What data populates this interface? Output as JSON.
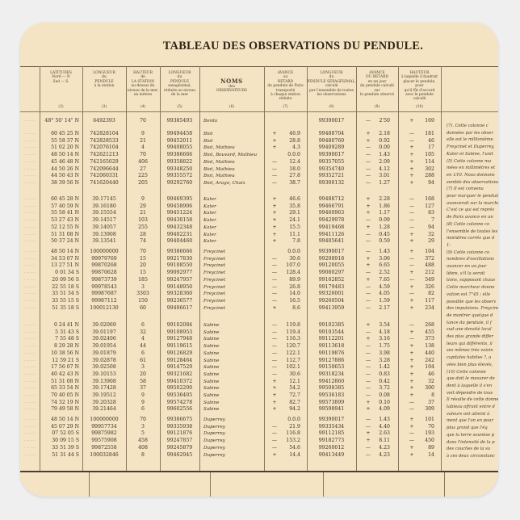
{
  "title": "TABLEAU DES OBSERVATIONS DU PENDULE.",
  "colors": {
    "paper": "#f4e4c4",
    "ink": "#3a2e22",
    "background": "#efefef"
  },
  "headers": [
    {
      "lines": [
        "LATITUDES",
        "Nord — N",
        "Sud — S."
      ],
      "num": "(2)"
    },
    {
      "lines": [
        "LONGUEUR",
        "du",
        "PENDULE",
        "à la station"
      ],
      "num": "(3)"
    },
    {
      "lines": [
        "HAUTEUR",
        "de",
        "LA STATION",
        "au-dessus du",
        "niveau de la mer,",
        "en mètres"
      ],
      "num": "(4)"
    },
    {
      "lines": [
        "LONGUEUR",
        "du",
        "PENDULE",
        "sexagésimal,",
        "réduite au niveau",
        "de la mer"
      ],
      "num": "(5)"
    },
    {
      "lines": [
        "NOMS",
        "des",
        "OBSERVATEURS"
      ],
      "num": "(6)"
    },
    {
      "lines": [
        "AVANCE",
        "ou",
        "RETARD",
        "du pendule de Paris",
        "transporté",
        "à chaque station",
        "réduite"
      ],
      "num": "(7)"
    },
    {
      "lines": [
        "LONGUEUR",
        "du",
        "PENDULE SEXAGÉSIMAL,",
        "calculé",
        "par l'ensemble de toutes",
        "les observations"
      ],
      "num": "(8)"
    },
    {
      "lines": [
        "AVANCE",
        "OU RETARD",
        "en un jour",
        "du pendule calculé",
        "sur",
        "le pendule observé"
      ],
      "num": "(9)"
    },
    {
      "lines": [
        "HAUTEUR",
        "à laquelle il faudrait",
        "placer le pendule,",
        "pour",
        "qu'il fût d'accord",
        "avec le pendule",
        "calculé"
      ],
      "num": "(10)"
    }
  ],
  "groups": [
    {
      "rows": [
        [
          "48° 50' 14\" N",
          "6492393",
          "70",
          "99385493",
          "Borda",
          "",
          "",
          "99390017",
          "—",
          "2'50",
          "+",
          "169"
        ]
      ]
    },
    {
      "rows": [
        [
          "60 45 25 N",
          "742828104",
          "9",
          "99494458",
          "Biot",
          "+",
          "46.9",
          "99488704",
          "+",
          "2.18",
          "—",
          "181"
        ],
        [
          "55 58 37 N",
          "742828533",
          "21",
          "99452011",
          "Biot",
          "+",
          "28.8",
          "99480760",
          "+",
          "0.92",
          "—",
          "46"
        ],
        [
          "51 02 20 N",
          "742076104",
          "4",
          "99408055",
          "Biot, Mathieu",
          "+",
          "4.3",
          "99409289",
          "—",
          "0.00",
          "+",
          "17"
        ],
        [
          "48 50 14 N",
          "742621213",
          "70",
          "99386666",
          "Biot, Bouvard, Mathieu",
          "",
          "0.0.0",
          "99390017",
          "—",
          "1.43",
          "+",
          "105"
        ],
        [
          "45 46 48 N",
          "742165029",
          "406",
          "99358822",
          "Biot, Mathieu",
          "—",
          "12.4",
          "99357055",
          "—",
          "2.09",
          "+",
          "114"
        ],
        [
          "44 50 26 N",
          "742096644",
          "27",
          "99348250",
          "Biot, Mathieu",
          "—",
          "18.0",
          "99354740",
          "—",
          "4.12",
          "+",
          "302"
        ],
        [
          "44 50 43 N",
          "742060331",
          "225",
          "99355572",
          "Biot, Mathieu",
          "—",
          "27.8",
          "99352721",
          "—",
          "3.01",
          "+",
          "288"
        ],
        [
          "38 39 56 N",
          "741620440",
          "205",
          "99292760",
          "Biot, Arago, Chaix",
          "—",
          "38.7",
          "99300132",
          "—",
          "1.27",
          "+",
          "94"
        ]
      ]
    },
    {
      "rows": [
        [
          "60 45 28 N",
          "39.17145",
          "9",
          "99469395",
          "Kater",
          "+",
          "46.6",
          "99488712",
          "+",
          "2.28",
          "—",
          "168"
        ],
        [
          "57 40 59 N",
          "39.16180",
          "29",
          "99458906",
          "Kater",
          "+",
          "35.8",
          "99466791",
          "+",
          "1.86",
          "—",
          "127"
        ],
        [
          "55 58 41 N",
          "39.15554",
          "21",
          "99451224",
          "Kater",
          "+",
          "29.1",
          "99460963",
          "+",
          "1.17",
          "—",
          "83"
        ],
        [
          "53 27 43 N",
          "39.14517",
          "103",
          "99430158",
          "Kater",
          "+",
          "24.1",
          "99429978",
          "—",
          "0.09",
          "—",
          "7"
        ],
        [
          "52 12 55 N",
          "39.14057",
          "255",
          "99432348",
          "Kater",
          "+",
          "15.5",
          "99419468",
          "+",
          "1.28",
          "—",
          "94"
        ],
        [
          "51 31 08 N",
          "39.13908",
          "28",
          "99402231",
          "Kater",
          "+",
          "11.1",
          "99411126",
          "—",
          "0.45",
          "+",
          "32"
        ],
        [
          "50 37 24 N",
          "39.13541",
          "74",
          "99404460",
          "Kater",
          "+",
          "7.8",
          "99405641",
          "—",
          "0.59",
          "+",
          "29"
        ]
      ]
    },
    {
      "rows": [
        [
          "48 50 14 N",
          "100000000",
          "70",
          "99386666",
          "Freycinet",
          "",
          "0.0.0",
          "99390017",
          "—",
          "1.43",
          "+",
          "104"
        ],
        [
          "34 53 07 N",
          "99979769",
          "15",
          "99217830",
          "Freycinet",
          "—",
          "30.6",
          "99208918",
          "+",
          "3.06",
          "—",
          "372"
        ],
        [
          "13 27 51 N",
          "99870268",
          "20",
          "99108550",
          "Freycinet",
          "—",
          "107.0",
          "99120055",
          "+",
          "6.65",
          "—",
          "488"
        ],
        [
          "0 01 34 S",
          "99870628",
          "15",
          "99092977",
          "Freycinet",
          "—",
          "128.4",
          "99080297",
          "—",
          "2.52",
          "+",
          "212"
        ],
        [
          "20 09 56 S",
          "99873739",
          "185",
          "99247957",
          "Freycinet",
          "—",
          "89.9",
          "99162852",
          "+",
          "7.65",
          "—",
          "549"
        ],
        [
          "22 55 18 S",
          "99978543",
          "3",
          "99148950",
          "Freycinet",
          "—",
          "26.8",
          "99179483",
          "—",
          "4.59",
          "+",
          "326"
        ],
        [
          "33 51 34 S",
          "99987687",
          "3303",
          "99328360",
          "Freycinet",
          "—",
          "14.0",
          "99326001",
          "—",
          "4.05",
          "—",
          "82"
        ],
        [
          "33 55 15 S",
          "99987112",
          "150",
          "99236577",
          "Freycinet",
          "—",
          "16.5",
          "99260504",
          "—",
          "1.59",
          "+",
          "117"
        ],
        [
          "51 35 18 S",
          "100012130",
          "60",
          "99406617",
          "Freycinet",
          "+",
          "8.6",
          "99413959",
          "—",
          "2.17",
          "+",
          "234"
        ]
      ]
    },
    {
      "rows": [
        [
          "0 24 41 N",
          "39.02069",
          "6",
          "99102084",
          "Sabine",
          "—",
          "119.8",
          "99102385",
          "+",
          "3.54",
          "—",
          "268"
        ],
        [
          "5 31 43 S",
          "39.01197",
          "32",
          "99108953",
          "Sabine",
          "—",
          "119.4",
          "99103544",
          "—",
          "4.18",
          "+",
          "455"
        ],
        [
          "7 55 48 S",
          "39.02406",
          "4",
          "99127948",
          "Sabine",
          "—",
          "116.3",
          "99112201",
          "+",
          "3.16",
          "—",
          "373"
        ],
        [
          "8 29 28 N",
          "39.01954",
          "44",
          "99119615",
          "Sabine",
          "—",
          "120.7",
          "99113618",
          "—",
          "1.75",
          "+",
          "138"
        ],
        [
          "10 38 56 N",
          "39.01879",
          "6",
          "99126829",
          "Sabine",
          "—",
          "122.1",
          "99119876",
          "—",
          "3.98",
          "+",
          "440"
        ],
        [
          "12 59 21 S",
          "39.02878",
          "61",
          "99128464",
          "Sabine",
          "—",
          "112.7",
          "99127886",
          "—",
          "3.28",
          "+",
          "242"
        ],
        [
          "17 56 07 N",
          "39.02508",
          "3",
          "99147529",
          "Sabine",
          "—",
          "102.1",
          "99150653",
          "—",
          "1.42",
          "+",
          "104"
        ],
        [
          "40 42 43 N",
          "39.10153",
          "20",
          "99321682",
          "Sabine",
          "—",
          "30.6",
          "99318234",
          "—",
          "0.83",
          "+",
          "46"
        ],
        [
          "51 31 08 N",
          "39.13908",
          "58",
          "99410372",
          "Sabine",
          "+",
          "12.1",
          "99412860",
          "—",
          "0.42",
          "+",
          "32"
        ],
        [
          "65 33 54 N",
          "39.17428",
          "37",
          "99502200",
          "Sabine",
          "+",
          "54.2",
          "99508385",
          "—",
          "3.72",
          "+",
          "300"
        ],
        [
          "70 40 05 N",
          "39.19512",
          "9",
          "99536405",
          "Sabine",
          "+",
          "72.7",
          "99536183",
          "—",
          "0.08",
          "+",
          "8"
        ],
        [
          "74 32 19 N",
          "39.20328",
          "9",
          "99574278",
          "Sabine",
          "+",
          "82.7",
          "99573899",
          "+",
          "0.10",
          "—",
          "37"
        ],
        [
          "79 49 58 N",
          "39.21464",
          "6",
          "99602556",
          "Sabine",
          "+",
          "94.2",
          "99598941",
          "+",
          "4.09",
          "—",
          "309"
        ]
      ]
    },
    {
      "rows": [
        [
          "48 50 14 N",
          "100000000",
          "70",
          "99386675",
          "Duperrey",
          "",
          "0.0.0",
          "99390017",
          "—",
          "1.43",
          "+",
          "101"
        ],
        [
          "45 07 29 N",
          "99957734",
          "3",
          "99335938",
          "Duperrey",
          "—",
          "21.9",
          "99335434",
          "—",
          "4.40",
          "+",
          "70"
        ],
        [
          "07 52 05 S",
          "99875982",
          "5",
          "99121876",
          "Duperrey",
          "—",
          "116.8",
          "99112185",
          "+",
          "2.63",
          "—",
          "193"
        ],
        [
          "30 09 15 S",
          "99575908",
          "458",
          "99247857",
          "Duperrey",
          "—",
          "153.2",
          "99182773",
          "+",
          "8.11",
          "—",
          "450"
        ],
        [
          "33 51 39 S",
          "99872558",
          "408",
          "99245879",
          "Duperrey",
          "—",
          "54.6",
          "99260012",
          "—",
          "4.23",
          "+",
          "89"
        ],
        [
          "51 31 44 S",
          "100032846",
          "8",
          "99462945",
          "Duperrey",
          "+",
          "14.4",
          "99413449",
          "—",
          "4.23",
          "+",
          "14"
        ]
      ]
    }
  ],
  "notes": [
    "(7). Cette colonne c",
    "données par les obser",
    "elle est le millionième",
    "Freycinet et Duperrey,",
    "Kater et Sabine, l'unit",
    "(5) Cette colonne ma",
    "mées en millimètres et",
    "en 1⁄10. Nous donnons",
    "semble des observations",
    "(7) Il est convenu",
    "pour marquer le pendule",
    "avancerait sur la marche",
    "C'est ce qui est représ",
    "de Paris avance en un",
    "(8) Cette colonne co",
    "l'ensemble de toutes les",
    "moindres carrés que d",
    "1:",
    "(9) Cette colonne co",
    "nombres d'oscillations",
    "avancer en un jour",
    "lèbre, s'il la seroit",
    "tions, supposant chaus",
    "Cette marcheur donne",
    "vation est 7\"45 ; elle",
    "possible que les observ",
    "des impulsions. Freycinet",
    "de montrer quelque d",
    "tance du pendule, il f",
    "sud une densité local",
    "des plus grande differ",
    "leurs qui différents, il",
    "ses mêmes très voisin",
    "capitales habites ?, a",
    "vées bien plus élevés,",
    "(10) Cette colonne",
    "que doit le mesurer de",
    "dent à laquelle il s'en",
    "voit dépendre de tous",
    "Il résulte de cette donne",
    "tableau offrant entre d",
    "valeurs ont atteint à",
    "ment que l'on en pour",
    "plus grand que l'éq",
    "que la terre soumise p",
    "dans l'intensité de la p",
    "des couches de la su",
    "à ces deux circonstanc"
  ]
}
